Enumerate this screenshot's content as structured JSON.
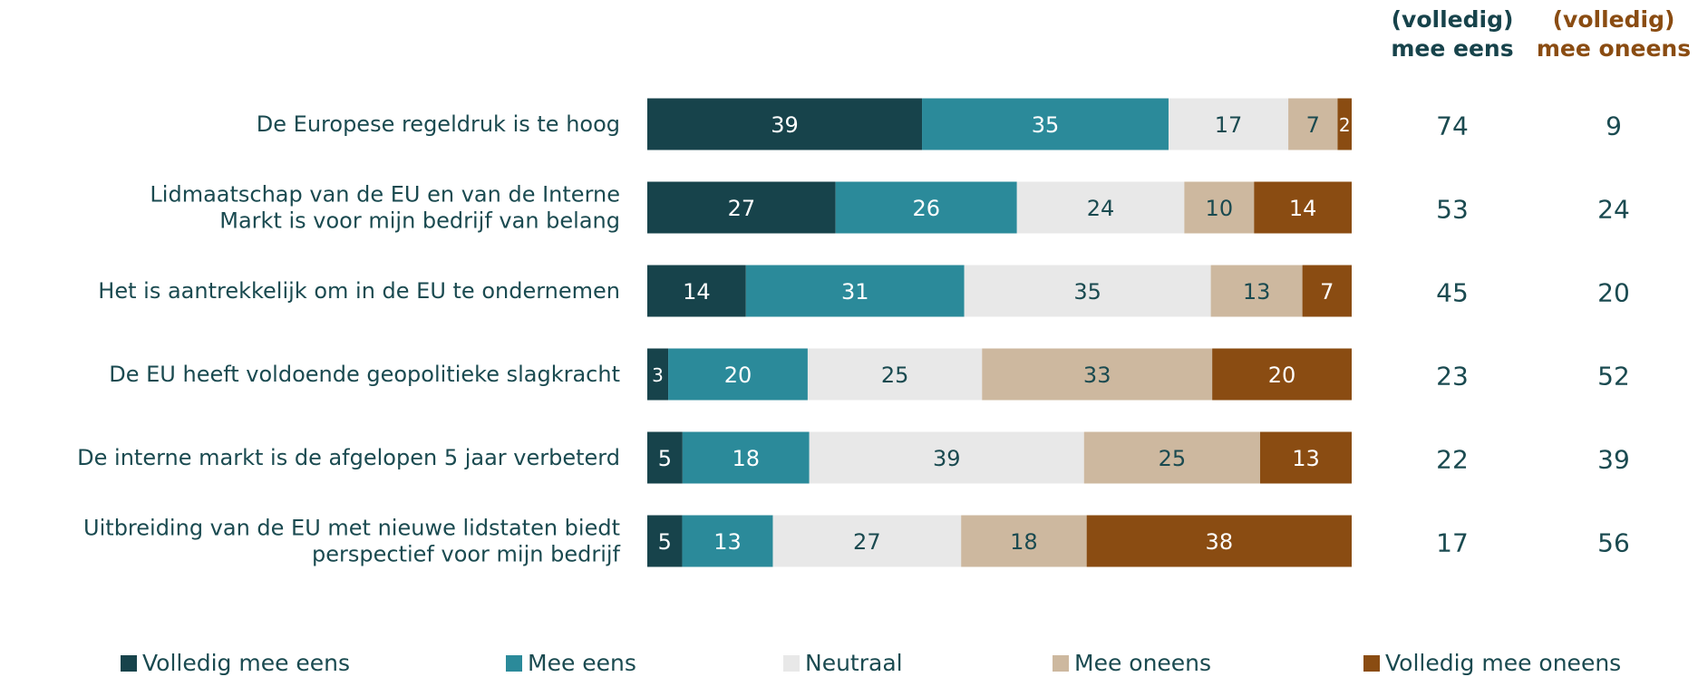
{
  "chart_data": {
    "type": "bar",
    "orientation": "horizontal",
    "stacked": true,
    "categories": [
      [
        "De Europese regeldruk is te hoog"
      ],
      [
        "Lidmaatschap van de EU en van de Interne",
        "Markt is voor mijn bedrijf van belang"
      ],
      [
        "Het is aantrekkelijk om in de EU te ondernemen"
      ],
      [
        "De EU heeft voldoende geopolitieke slagkracht"
      ],
      [
        "De interne markt is de afgelopen 5 jaar verbeterd"
      ],
      [
        "Uitbreiding van de EU met nieuwe lidstaten biedt",
        "perspectief voor mijn bedrijf"
      ]
    ],
    "series": [
      {
        "name": "Volledig mee eens",
        "color": "#17434b",
        "label_color": "#ffffff",
        "values": [
          39,
          27,
          14,
          3,
          5,
          5
        ]
      },
      {
        "name": "Mee eens",
        "color": "#2b8a9a",
        "label_color": "#ffffff",
        "values": [
          35,
          26,
          31,
          20,
          18,
          13
        ]
      },
      {
        "name": "Neutraal",
        "color": "#e8e8e8",
        "label_color": "#1a4a50",
        "values": [
          17,
          24,
          35,
          25,
          39,
          27
        ]
      },
      {
        "name": "Mee oneens",
        "color": "#cdb89f",
        "label_color": "#1a4a50",
        "values": [
          7,
          10,
          13,
          33,
          25,
          18
        ]
      },
      {
        "name": "Volledig mee oneens",
        "color": "#8a4c12",
        "label_color": "#ffffff",
        "values": [
          2,
          14,
          7,
          20,
          13,
          38
        ]
      }
    ],
    "summary_columns": [
      {
        "header": [
          "(volledig)",
          "mee eens"
        ],
        "color": "#17434b",
        "values": [
          74,
          53,
          45,
          23,
          22,
          17
        ]
      },
      {
        "header": [
          "(volledig)",
          "mee oneens"
        ],
        "color": "#8a4c12",
        "values": [
          9,
          24,
          20,
          52,
          39,
          56
        ]
      }
    ],
    "legend_position": "bottom",
    "grid": false
  }
}
